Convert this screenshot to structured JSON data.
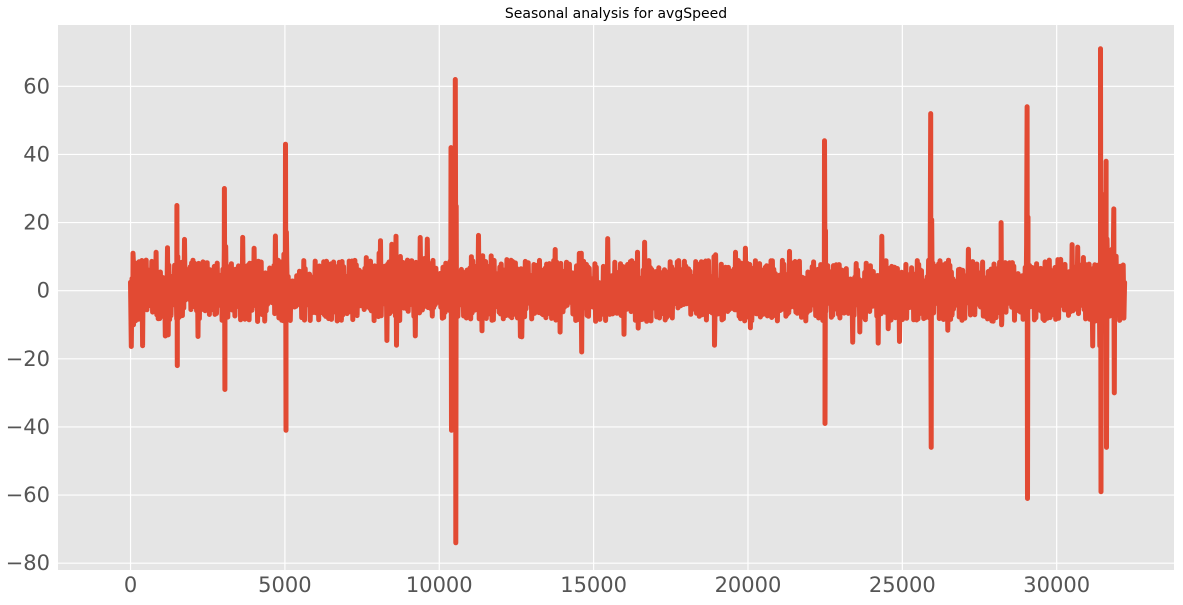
{
  "chart_data": {
    "type": "line",
    "title": "Seasonal analysis for avgSpeed",
    "xlabel": "",
    "ylabel": "",
    "xlim": [
      -2350,
      33800
    ],
    "ylim": [
      -82,
      78
    ],
    "x_ticks": [
      0,
      5000,
      10000,
      15000,
      20000,
      25000,
      30000
    ],
    "x_tick_labels": [
      "0",
      "5000",
      "10000",
      "15000",
      "20000",
      "25000",
      "30000"
    ],
    "y_ticks": [
      -80,
      -60,
      -40,
      -20,
      0,
      20,
      40,
      60
    ],
    "y_tick_labels": [
      "−80",
      "−60",
      "−40",
      "−20",
      "0",
      "20",
      "40",
      "60"
    ],
    "grid": true,
    "legend": "none",
    "series": [
      {
        "color": "#E24A33",
        "x_start": 0,
        "x_end": 32200,
        "baseline_amplitude": 6,
        "peaks": [
          {
            "x": 80,
            "min": -10,
            "max": 11
          },
          {
            "x": 1500,
            "min": -22,
            "max": 25
          },
          {
            "x": 3040,
            "min": -29,
            "max": 30
          },
          {
            "x": 5020,
            "min": -41,
            "max": 43
          },
          {
            "x": 8600,
            "min": -16,
            "max": 16
          },
          {
            "x": 10380,
            "min": -41,
            "max": 42
          },
          {
            "x": 10520,
            "min": -74,
            "max": 62
          },
          {
            "x": 14600,
            "min": -18,
            "max": 11
          },
          {
            "x": 18900,
            "min": -16,
            "max": 10
          },
          {
            "x": 22480,
            "min": -39,
            "max": 44
          },
          {
            "x": 25920,
            "min": -46,
            "max": 52
          },
          {
            "x": 28200,
            "min": -10,
            "max": 20
          },
          {
            "x": 29040,
            "min": -61,
            "max": 54
          },
          {
            "x": 31420,
            "min": -59,
            "max": 71
          },
          {
            "x": 31600,
            "min": -46,
            "max": 38
          },
          {
            "x": 31850,
            "min": -30,
            "max": 24
          }
        ]
      }
    ]
  }
}
